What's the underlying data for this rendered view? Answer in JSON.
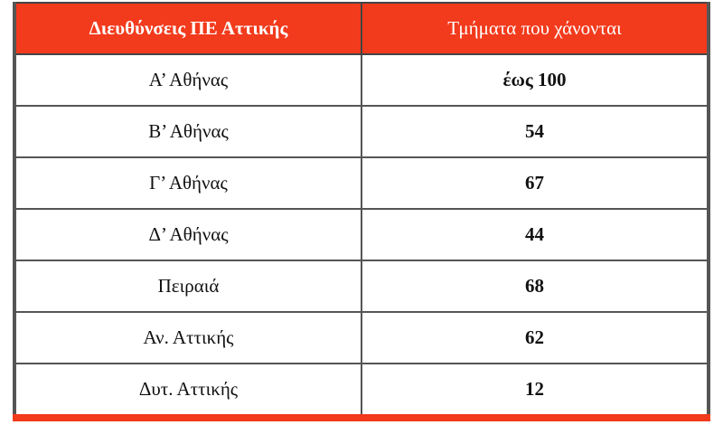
{
  "table": {
    "header": [
      "Διευθύνσεις ΠΕ Αττικής",
      "Τμήματα που χάνονται"
    ],
    "rows": [
      [
        "Α’ Αθήνας",
        "έως 100"
      ],
      [
        "Β’ Αθήνας",
        54
      ],
      [
        "Γ’ Αθήνας",
        67
      ],
      [
        "Δ’ Αθήνας",
        44
      ],
      [
        "Πειραιά",
        68
      ],
      [
        "Αν. Αττικής",
        62
      ],
      [
        "Δυτ. Αττικής",
        12
      ]
    ]
  }
}
